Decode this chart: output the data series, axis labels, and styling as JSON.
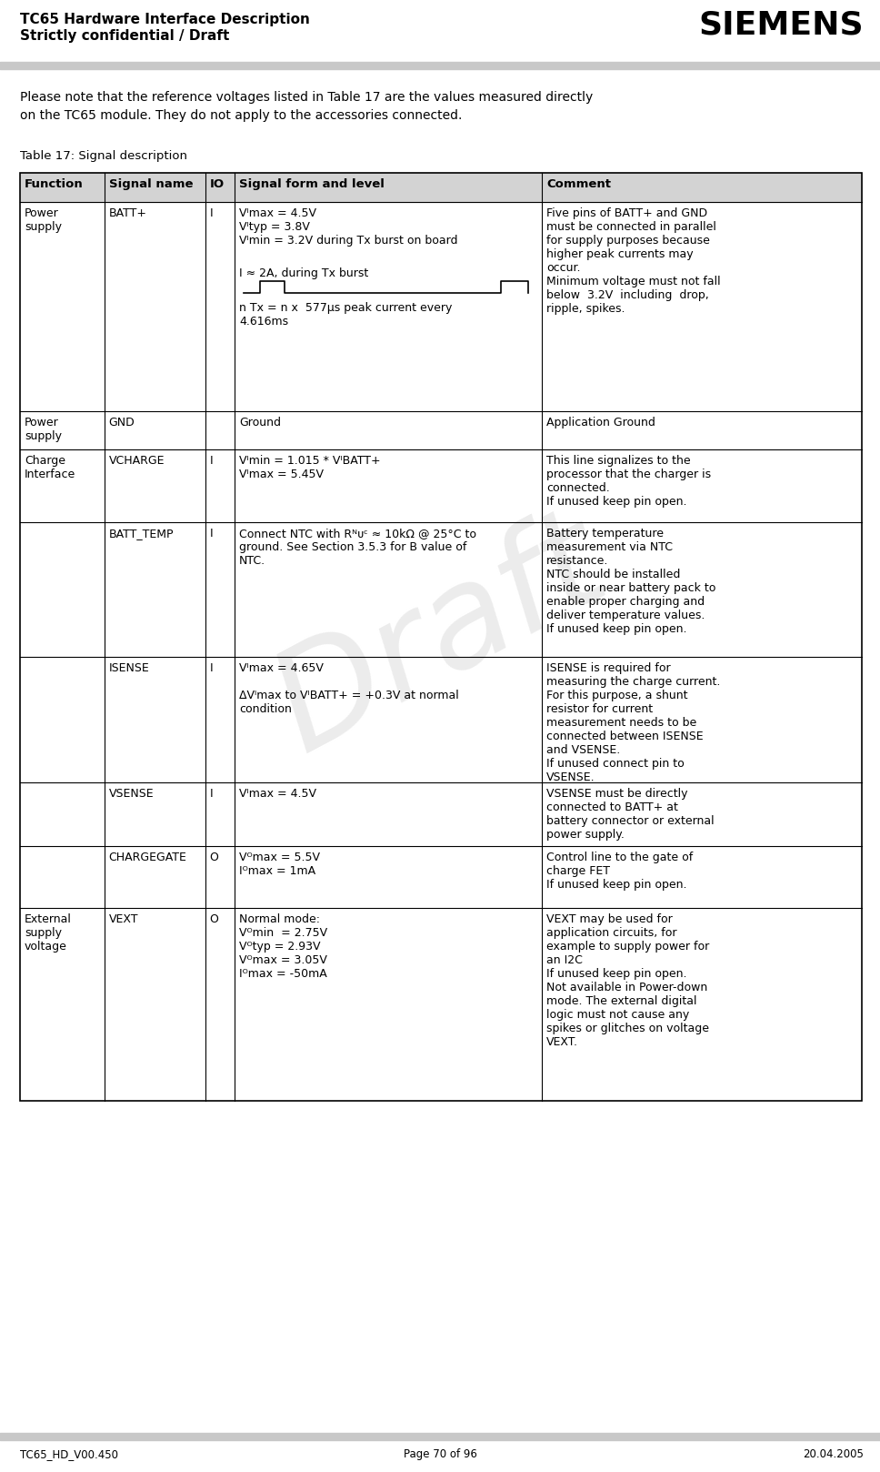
{
  "header_line1": "TC65 Hardware Interface Description",
  "header_line2": "Strictly confidential / Draft",
  "siemens_logo": "SIEMENS",
  "footer_left": "TC65_HD_V00.450",
  "footer_center": "Page 70 of 96",
  "footer_right": "20.04.2005",
  "intro_text": "Please note that the reference voltages listed in Table 17 are the values measured directly\non the TC65 module. They do not apply to the accessories connected.",
  "table_title": "Table 17: Signal description",
  "background_color": "#ffffff",
  "header_gray": "#d3d3d3",
  "watermark_text": "Draft",
  "watermark_color": "#c8c8c8",
  "watermark_alpha": 0.35
}
